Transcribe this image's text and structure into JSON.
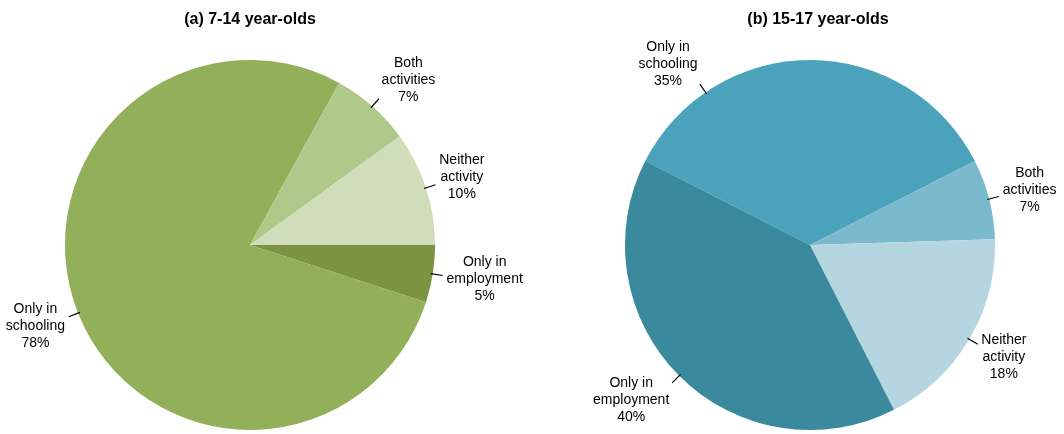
{
  "chart_data": [
    {
      "type": "pie",
      "title": "(a) 7-14 year-olds",
      "categories": [
        "Only in employment",
        "Only in schooling",
        "Both activities",
        "Neither activity"
      ],
      "values": [
        5,
        78,
        7,
        10
      ],
      "colors": [
        "#7a9442",
        "#92b05a",
        "#aec98a",
        "#d0ddba"
      ],
      "value_labels": [
        "5%",
        "78%",
        "7%",
        "10%"
      ]
    },
    {
      "type": "pie",
      "title": "(b) 15-17 year-olds",
      "categories": [
        "Only in schooling",
        "Both activities",
        "Neither activity",
        "Only in employment"
      ],
      "values": [
        35,
        7,
        18,
        40
      ],
      "colors": [
        "#4aa3ba",
        "#7bb9cd",
        "#b5d6e0",
        "#3a899c"
      ],
      "value_labels": [
        "35%",
        "7%",
        "18%",
        "40%"
      ]
    }
  ]
}
